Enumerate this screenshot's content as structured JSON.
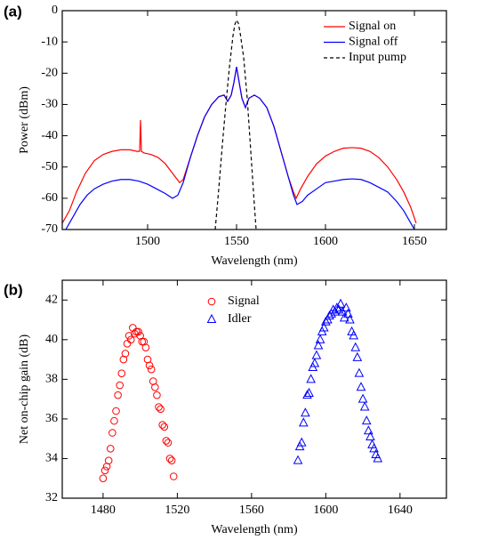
{
  "chart_data": [
    {
      "type": "line",
      "panel_label": "(a)",
      "x_label": "Wavelength (nm)",
      "y_label": "Power (dBm)",
      "xlim": [
        1452,
        1668
      ],
      "xticks": [
        1500,
        1550,
        1600,
        1650
      ],
      "ylim": [
        -70,
        0
      ],
      "yticks": [
        -70,
        -60,
        -50,
        -40,
        -30,
        -20,
        -10,
        0
      ],
      "legend": "upper right",
      "series": [
        {
          "name": "Signal on",
          "color": "#ff0000",
          "dash": false,
          "x": [
            1452,
            1456,
            1460,
            1465,
            1470,
            1475,
            1480,
            1485,
            1490,
            1494,
            1495.5,
            1496,
            1496.5,
            1498,
            1502,
            1506,
            1510,
            1514,
            1518,
            1520,
            1524,
            1528,
            1532,
            1536,
            1540,
            1543,
            1545,
            1547,
            1548.5,
            1550,
            1551.5,
            1553,
            1555,
            1557,
            1560,
            1563,
            1567,
            1571,
            1575,
            1579,
            1582,
            1583.5,
            1586,
            1590,
            1595,
            1600,
            1605,
            1610,
            1615,
            1620,
            1625,
            1630,
            1635,
            1640,
            1644,
            1648,
            1651
          ],
          "values": [
            -68,
            -64,
            -58,
            -52,
            -48,
            -46,
            -45,
            -44.5,
            -44.5,
            -45,
            -45,
            -35,
            -45,
            -45.5,
            -46,
            -47,
            -49,
            -52,
            -55,
            -54,
            -47,
            -40,
            -34,
            -30,
            -27.5,
            -27,
            -29,
            -27,
            -23,
            -18,
            -23,
            -28,
            -31,
            -28,
            -27,
            -28,
            -31,
            -37,
            -45,
            -53,
            -58,
            -60,
            -57,
            -53,
            -49,
            -46.5,
            -45,
            -44,
            -43.8,
            -44,
            -45,
            -47,
            -50,
            -54,
            -58,
            -63,
            -68
          ]
        },
        {
          "name": "Signal off",
          "color": "#0000ff",
          "dash": false,
          "x": [
            1454,
            1458,
            1462,
            1466,
            1470,
            1475,
            1480,
            1485,
            1490,
            1495,
            1500,
            1505,
            1510,
            1514,
            1517,
            1520,
            1524,
            1528,
            1532,
            1536,
            1540,
            1543,
            1545,
            1547,
            1548.5,
            1550,
            1551.5,
            1553,
            1555,
            1557,
            1560,
            1563,
            1567,
            1571,
            1575,
            1579,
            1582,
            1584,
            1587,
            1590,
            1595,
            1600,
            1605,
            1610,
            1615,
            1620,
            1625,
            1630,
            1635,
            1640,
            1644,
            1648,
            1650
          ],
          "values": [
            -70,
            -66,
            -62,
            -59,
            -57,
            -55.5,
            -54.5,
            -54,
            -54,
            -54.5,
            -55.5,
            -57,
            -58.5,
            -60,
            -59,
            -55,
            -47,
            -40,
            -34,
            -30,
            -27.5,
            -27,
            -29,
            -27,
            -23,
            -18,
            -23,
            -28,
            -31,
            -28,
            -27,
            -28,
            -31,
            -37,
            -45,
            -53,
            -59,
            -62,
            -61,
            -59,
            -57,
            -55,
            -54.5,
            -54,
            -53.8,
            -54,
            -55,
            -56.5,
            -58,
            -61,
            -64,
            -68,
            -70
          ]
        },
        {
          "name": "Input pump",
          "color": "#000000",
          "dash": true,
          "x": [
            1538,
            1540,
            1542,
            1544,
            1546,
            1548,
            1549,
            1550,
            1551,
            1552,
            1554,
            1556,
            1558,
            1560,
            1561
          ],
          "values": [
            -70,
            -57,
            -43,
            -30,
            -18,
            -8,
            -4.5,
            -3,
            -4,
            -7,
            -15,
            -28,
            -45,
            -62,
            -70
          ]
        }
      ]
    },
    {
      "type": "scatter",
      "panel_label": "(b)",
      "x_label": "Wavelength (nm)",
      "y_label": "Net on-chip gain (dB)",
      "xlim": [
        1458,
        1665
      ],
      "xticks": [
        1480,
        1520,
        1560,
        1600,
        1640
      ],
      "ylim": [
        32,
        43
      ],
      "yticks": [
        32,
        34,
        36,
        38,
        40,
        42
      ],
      "legend": "upper center",
      "series": [
        {
          "name": "Signal",
          "color": "#ff0000",
          "marker": "circle",
          "x": [
            1480,
            1481,
            1482,
            1483,
            1484,
            1485,
            1486,
            1487,
            1488,
            1489,
            1490,
            1491,
            1492,
            1493,
            1494,
            1495,
            1496,
            1497,
            1498,
            1499,
            1500,
            1501,
            1502,
            1503,
            1504,
            1505,
            1506,
            1507,
            1508,
            1509,
            1510,
            1511,
            1512,
            1513,
            1514,
            1515,
            1516,
            1517,
            1518
          ],
          "values": [
            33.0,
            33.4,
            33.6,
            33.9,
            34.5,
            35.3,
            35.9,
            36.4,
            37.2,
            37.7,
            38.3,
            39.0,
            39.3,
            39.8,
            40.2,
            40.0,
            40.6,
            40.3,
            40.4,
            40.4,
            40.2,
            39.9,
            39.9,
            39.6,
            39.0,
            38.7,
            38.5,
            37.9,
            37.6,
            37.2,
            36.6,
            36.5,
            35.7,
            35.6,
            34.9,
            34.8,
            34.0,
            33.9,
            33.1
          ]
        },
        {
          "name": "Idler",
          "color": "#0000ff",
          "marker": "triangle",
          "x": [
            1585,
            1586,
            1587,
            1588,
            1589,
            1590,
            1591,
            1592,
            1593,
            1594,
            1595,
            1596,
            1597,
            1598,
            1599,
            1600,
            1601,
            1602,
            1603,
            1604,
            1605,
            1606,
            1607,
            1608,
            1609,
            1610,
            1611,
            1612,
            1613,
            1614,
            1615,
            1616,
            1617,
            1618,
            1619,
            1620,
            1621,
            1622,
            1623,
            1624,
            1625,
            1626,
            1627,
            1628
          ],
          "values": [
            33.9,
            34.6,
            34.8,
            35.8,
            36.3,
            37.2,
            37.3,
            38.0,
            38.6,
            38.8,
            39.2,
            39.7,
            40.0,
            40.4,
            40.6,
            40.9,
            41.0,
            41.2,
            41.3,
            41.5,
            41.4,
            41.6,
            41.5,
            41.8,
            41.4,
            41.1,
            41.6,
            41.3,
            41.0,
            40.4,
            40.2,
            39.6,
            39.1,
            38.3,
            37.6,
            37.0,
            36.6,
            35.9,
            35.4,
            35.1,
            34.7,
            34.5,
            34.2,
            34.0
          ]
        }
      ]
    }
  ]
}
